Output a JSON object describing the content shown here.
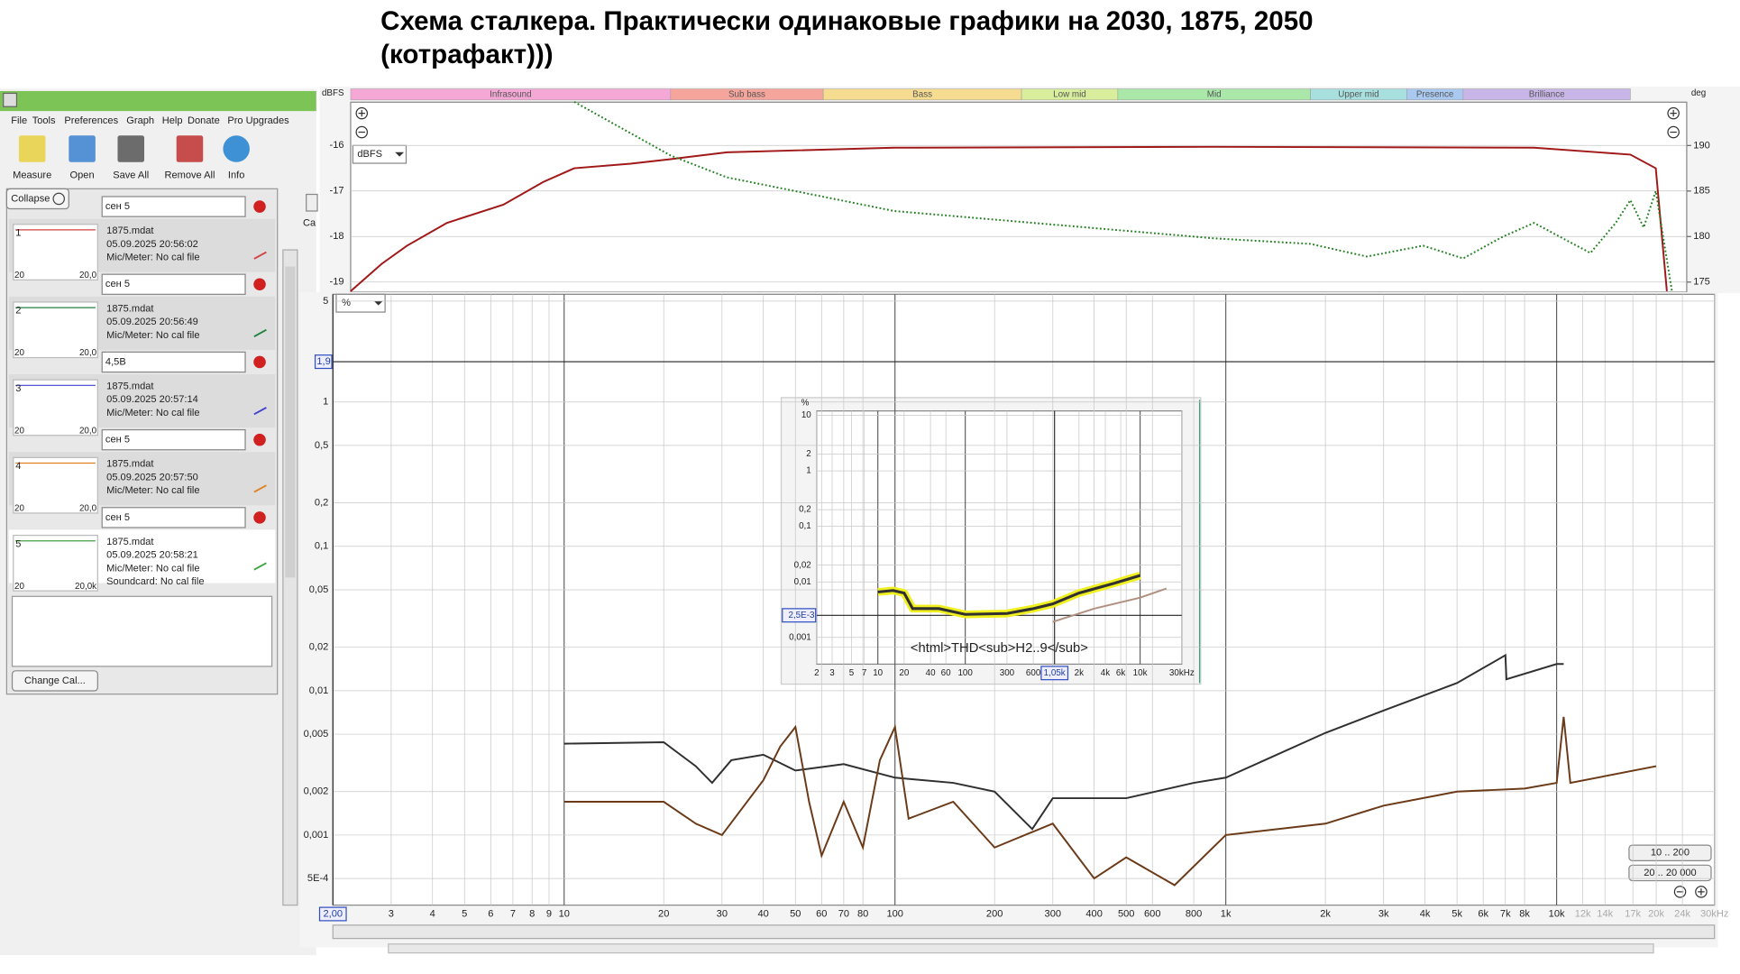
{
  "title": [
    "Схема сталкера. Практически одинаковые графики на 2030, 1875, 2050",
    "(котрафакт)))"
  ],
  "menu": [
    "File",
    "Tools",
    "Preferences",
    "Graph",
    "Help",
    "Donate",
    "Pro Upgrades"
  ],
  "toolbar": [
    "Measure",
    "Open",
    "Save All",
    "Remove All",
    "Info"
  ],
  "collapse": "Collapse",
  "side_label": "Ca",
  "measurements": [
    {
      "index": "1",
      "name": "сен 5",
      "file": "1875.mdat",
      "date": "05.09.2025 20:56:02",
      "mic": "Mic/Meter: No cal file",
      "thumb_left": "20",
      "thumb_right": "20,0",
      "color": "#d04040"
    },
    {
      "index": "2",
      "name": "сен 5",
      "file": "1875.mdat",
      "date": "05.09.2025 20:56:49",
      "mic": "Mic/Meter: No cal file",
      "thumb_left": "20",
      "thumb_right": "20,0",
      "color": "#208040"
    },
    {
      "index": "3",
      "name": "4,5В",
      "file": "1875.mdat",
      "date": "05.09.2025 20:57:14",
      "mic": "Mic/Meter: No cal file",
      "thumb_left": "20",
      "thumb_right": "20,0",
      "color": "#4040d0"
    },
    {
      "index": "4",
      "name": "сен 5",
      "file": "1875.mdat",
      "date": "05.09.2025 20:57:50",
      "mic": "Mic/Meter: No cal file",
      "thumb_left": "20",
      "thumb_right": "20,0",
      "color": "#e08020"
    },
    {
      "index": "5",
      "name": "сен 5",
      "file": "1875.mdat",
      "date": "05.09.2025 20:58:21",
      "mic": "Mic/Meter: No cal file",
      "soundcard": "Soundcard: No cal file",
      "thumb_left": "20",
      "thumb_right": "20,0k",
      "color": "#40a040"
    }
  ],
  "change_cal": "Change Cal...",
  "top_unit_select": "dBFS",
  "main_unit_select": "%",
  "range_buttons": [
    "10 .. 200",
    "20 .. 20 000"
  ],
  "bands": [
    {
      "name": "Infrasound",
      "range": [
        2,
        20
      ],
      "color": "#f5a8d6"
    },
    {
      "name": "Sub bass",
      "range": [
        20,
        60
      ],
      "color": "#f5a59c"
    },
    {
      "name": "Bass",
      "range": [
        60,
        250
      ],
      "color": "#f6dc90"
    },
    {
      "name": "Low mid",
      "range": [
        250,
        500
      ],
      "color": "#d8ee9c"
    },
    {
      "name": "Mid",
      "range": [
        500,
        2000
      ],
      "color": "#a9e8a9"
    },
    {
      "name": "Upper mid",
      "range": [
        2000,
        4000
      ],
      "color": "#a8e0e0"
    },
    {
      "name": "Presence",
      "range": [
        4000,
        6000
      ],
      "color": "#a9c9f0"
    },
    {
      "name": "Brilliance",
      "range": [
        6000,
        20000
      ],
      "color": "#c9b6e8"
    }
  ],
  "chart_data": [
    {
      "type": "line",
      "y_label": "dBFS",
      "y2_label": "deg",
      "xlog": true,
      "xlim": [
        2,
        30000
      ],
      "ylim": [
        -19.22,
        -15.05
      ],
      "yticks": [
        -16,
        -17,
        -18,
        -19
      ],
      "y2lim": [
        173.9,
        194.76
      ],
      "y2ticks": [
        190,
        185,
        180,
        175
      ],
      "series": [
        {
          "color": "#a01818",
          "x": [
            2,
            2.5,
            3,
            4,
            6,
            8,
            10,
            15,
            20,
            30,
            100,
            1000,
            10000,
            20000,
            24000,
            26000
          ],
          "values": [
            -19.2,
            -18.6,
            -18.2,
            -17.7,
            -17.3,
            -16.8,
            -16.5,
            -16.4,
            -16.3,
            -16.15,
            -16.05,
            -16.03,
            -16.05,
            -16.2,
            -16.5,
            -19.2
          ]
        },
        {
          "color": "#208020",
          "axis": "y2",
          "style": "dotted",
          "x": [
            10,
            20,
            30,
            100,
            1000,
            2000,
            3000,
            4500,
            6000,
            8000,
            10000,
            12000,
            15000,
            18000,
            20000,
            22000,
            24000,
            27000
          ],
          "values": [
            194.8,
            188.9,
            186.5,
            182.8,
            179.8,
            179.2,
            177.8,
            179,
            177.6,
            180,
            181.5,
            180,
            178.2,
            181.5,
            184,
            181,
            185,
            173.9
          ]
        }
      ]
    },
    {
      "type": "line",
      "xlog": true,
      "ylog": true,
      "xlim": [
        2,
        30000
      ],
      "ylim": [
        0.000327,
        5.57
      ],
      "cursor_y": {
        "value": 1.9,
        "label": "1,9"
      },
      "cursor_x": {
        "value": 2,
        "label": "2,00"
      },
      "yticks": [
        5,
        1,
        {
          "value": 0.5,
          "label": "0,5"
        },
        {
          "value": 0.2,
          "label": "0,2"
        },
        {
          "value": 0.1,
          "label": "0,1"
        },
        {
          "value": 0.05,
          "label": "0,05"
        },
        {
          "value": 0.02,
          "label": "0,02"
        },
        {
          "value": 0.01,
          "label": "0,01"
        },
        {
          "value": 0.005,
          "label": "0,005"
        },
        {
          "value": 0.002,
          "label": "0,002"
        },
        {
          "value": 0.001,
          "label": "0,001"
        },
        {
          "value": 0.0005,
          "label": "5E-4"
        }
      ],
      "xticks": [
        3,
        4,
        5,
        6,
        7,
        8,
        9,
        10,
        20,
        30,
        40,
        50,
        60,
        70,
        80,
        100,
        200,
        300,
        400,
        500,
        600,
        800,
        {
          "value": 1000,
          "label": "1k"
        },
        {
          "value": 2000,
          "label": "2k"
        },
        {
          "value": 3000,
          "label": "3k"
        },
        {
          "value": 4000,
          "label": "4k"
        },
        {
          "value": 5000,
          "label": "5k"
        },
        {
          "value": 6000,
          "label": "6k"
        },
        {
          "value": 7000,
          "label": "7k"
        },
        {
          "value": 8000,
          "label": "8k"
        },
        {
          "value": 10000,
          "label": "10k"
        },
        {
          "value": 12000,
          "label": "12k"
        },
        {
          "value": 14000,
          "label": "14k"
        },
        {
          "value": 17000,
          "label": "17k"
        },
        {
          "value": 20000,
          "label": "20k"
        },
        {
          "value": 24000,
          "label": "24k"
        },
        {
          "value": 30000,
          "label": "30kHz"
        }
      ],
      "series": [
        {
          "color": "#303030",
          "x": [
            10,
            20,
            25,
            28,
            32,
            40,
            50,
            70,
            100,
            150,
            200,
            260,
            300,
            500,
            800,
            1000,
            2000,
            3000,
            5000,
            7000,
            7050,
            10000,
            10500
          ],
          "values": [
            0.0043,
            0.0044,
            0.003,
            0.0023,
            0.0033,
            0.0036,
            0.0028,
            0.0031,
            0.0025,
            0.0023,
            0.002,
            0.0011,
            0.0018,
            0.0018,
            0.0023,
            0.0025,
            0.0051,
            0.0073,
            0.0113,
            0.0176,
            0.012,
            0.0153,
            0.0153
          ]
        },
        {
          "color": "#6b3a18",
          "x": [
            10,
            20,
            25,
            30,
            40,
            45,
            50,
            55,
            60,
            70,
            80,
            90,
            100,
            110,
            150,
            200,
            300,
            400,
            500,
            700,
            1000,
            2000,
            3000,
            5000,
            8000,
            10000,
            10500,
            11000,
            20000
          ],
          "values": [
            0.0017,
            0.0017,
            0.0012,
            0.001,
            0.0024,
            0.0041,
            0.0056,
            0.0017,
            0.00072,
            0.0017,
            0.00082,
            0.0033,
            0.0056,
            0.0013,
            0.0017,
            0.00082,
            0.0012,
            0.0005,
            0.0007,
            0.00045,
            0.001,
            0.0012,
            0.0016,
            0.002,
            0.0021,
            0.0023,
            0.0066,
            0.0023,
            0.003
          ]
        }
      ]
    },
    {
      "type": "line",
      "y_label": "%",
      "xlog": true,
      "ylog": true,
      "xlim": [
        2,
        30000
      ],
      "ylim": [
        0.00033,
        12
      ],
      "annotation": "<html>THD<sub>H2..9</sub>",
      "cursor_y": {
        "value": 0.0025,
        "label": "2,5E-3"
      },
      "cursor_x": {
        "value": 1050,
        "label": "1,05k"
      },
      "yticks": [
        10,
        2,
        1,
        {
          "value": 0.2,
          "label": "0,2"
        },
        {
          "value": 0.1,
          "label": "0,1"
        },
        {
          "value": 0.02,
          "label": "0,02"
        },
        {
          "value": 0.01,
          "label": "0,01"
        },
        {
          "value": 0.001,
          "label": "0,001"
        }
      ],
      "xticks": [
        2,
        3,
        5,
        7,
        10,
        20,
        40,
        60,
        100,
        300,
        600,
        {
          "value": 2000,
          "label": "2k"
        },
        {
          "value": 4000,
          "label": "4k"
        },
        {
          "value": 6000,
          "label": "6k"
        },
        {
          "value": 10000,
          "label": "10k"
        },
        {
          "value": 30000,
          "label": "30kHz"
        }
      ],
      "series": [
        {
          "color": "#303030",
          "highlight_color": "#f0f020",
          "x": [
            10,
            15,
            20,
            25,
            50,
            100,
            300,
            600,
            1000,
            2000,
            5000,
            10000
          ],
          "values": [
            0.0066,
            0.007,
            0.0063,
            0.0033,
            0.0033,
            0.0026,
            0.0027,
            0.0033,
            0.004,
            0.0063,
            0.0094,
            0.013
          ]
        },
        {
          "color": "#b09080",
          "x": [
            1000,
            3000,
            10000,
            20000
          ],
          "values": [
            0.0019,
            0.0033,
            0.0052,
            0.0076
          ]
        }
      ]
    }
  ]
}
